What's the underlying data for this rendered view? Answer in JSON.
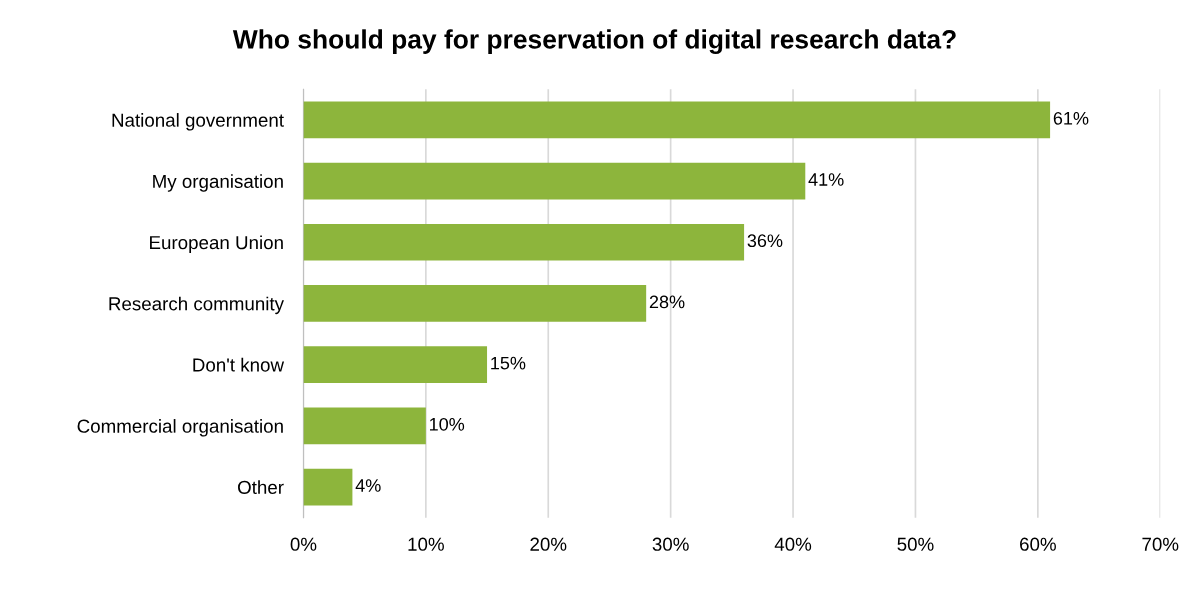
{
  "chart_data": {
    "type": "bar",
    "orientation": "horizontal",
    "title": "Who should pay for preservation of digital research data?",
    "categories": [
      "National government",
      "My organisation",
      "European Union",
      "Research community",
      "Don't know",
      "Commercial organisation",
      "Other"
    ],
    "values": [
      61,
      41,
      36,
      28,
      15,
      10,
      4
    ],
    "value_labels": [
      "61%",
      "41%",
      "36%",
      "28%",
      "15%",
      "10%",
      "4%"
    ],
    "color": "#8db53c",
    "xlim": [
      0,
      70
    ],
    "xticks": [
      {
        "value": 0,
        "label": "0%"
      },
      {
        "value": 10,
        "label": "10%"
      },
      {
        "value": 20,
        "label": "20%"
      },
      {
        "value": 30,
        "label": "30%"
      },
      {
        "value": 40,
        "label": "40%"
      },
      {
        "value": 50,
        "label": "50%"
      },
      {
        "value": 60,
        "label": "60%"
      },
      {
        "value": 70,
        "label": "70%"
      }
    ],
    "grid": "x"
  }
}
